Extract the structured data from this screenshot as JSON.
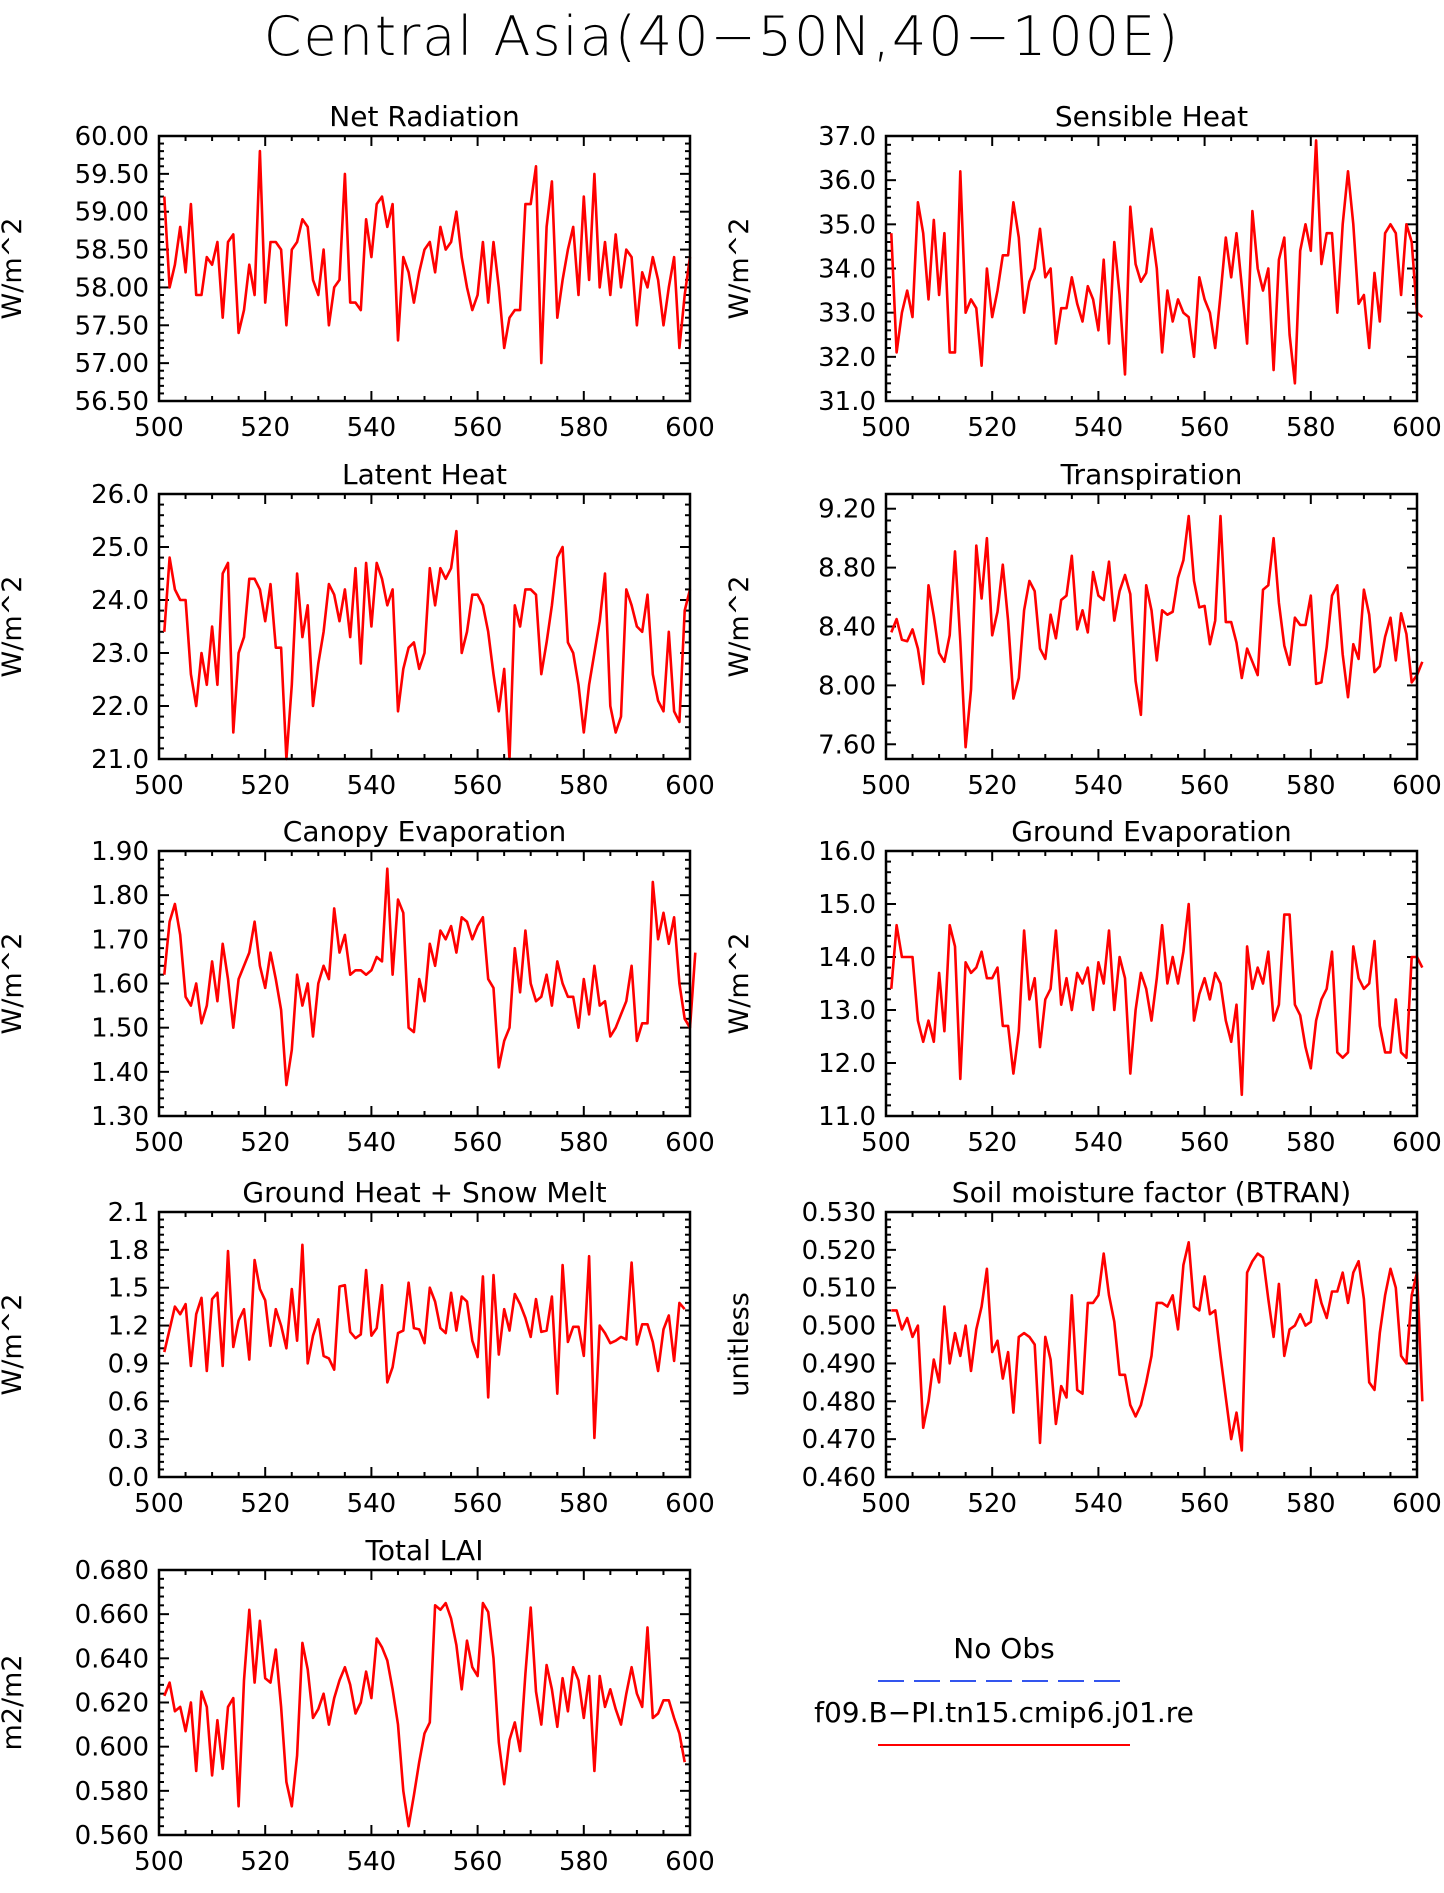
{
  "title": "Central Asia(40−50N,40−100E)",
  "colors": {
    "model": "#ff0000",
    "obs": "#3355ee",
    "axis": "#000000"
  },
  "legend": {
    "obs_label": "No Obs",
    "model_label": "f09.B−PI.tn15.cmip6.j01.re"
  },
  "chart_data": [
    {
      "type": "line",
      "title": "Net Radiation",
      "ylabel": "W/m^2",
      "xlim": [
        500,
        600
      ],
      "ylim": [
        56.5,
        60.0
      ],
      "xticks": [
        500,
        520,
        540,
        560,
        580,
        600
      ],
      "xtick_labels": [
        "500",
        "520",
        "540",
        "560",
        "580",
        "600"
      ],
      "yticks": [
        56.5,
        57.0,
        57.5,
        58.0,
        58.5,
        59.0,
        59.5,
        60.0
      ],
      "ytick_labels": [
        "56.50",
        "57.00",
        "57.50",
        "58.00",
        "58.50",
        "59.00",
        "59.50",
        "60.00"
      ],
      "x_start": 501,
      "x_step": 1,
      "values": [
        59.2,
        58.0,
        58.3,
        58.8,
        58.2,
        59.1,
        57.9,
        57.9,
        58.4,
        58.3,
        58.6,
        57.6,
        58.6,
        58.7,
        57.4,
        57.7,
        58.3,
        57.9,
        59.8,
        57.8,
        58.6,
        58.6,
        58.5,
        57.5,
        58.5,
        58.6,
        58.9,
        58.8,
        58.1,
        57.9,
        58.5,
        57.5,
        58.0,
        58.1,
        59.5,
        57.8,
        57.8,
        57.7,
        58.9,
        58.4,
        59.1,
        59.2,
        58.8,
        59.1,
        57.3,
        58.4,
        58.2,
        57.8,
        58.2,
        58.5,
        58.6,
        58.2,
        58.8,
        58.5,
        58.6,
        59.0,
        58.4,
        58.0,
        57.7,
        57.9,
        58.6,
        57.8,
        58.6,
        58.0,
        57.2,
        57.6,
        57.7,
        57.7,
        59.1,
        59.1,
        59.6,
        57.0,
        58.8,
        59.4,
        57.6,
        58.1,
        58.5,
        58.8,
        57.9,
        59.2,
        58.1,
        59.5,
        58.0,
        58.6,
        57.9,
        58.7,
        58.0,
        58.5,
        58.4,
        57.5,
        58.2,
        58.0,
        58.4,
        58.1,
        57.5,
        58.0,
        58.4,
        57.2,
        57.9,
        58.4
      ]
    },
    {
      "type": "line",
      "title": "Sensible Heat",
      "ylabel": "W/m^2",
      "xlim": [
        500,
        600
      ],
      "ylim": [
        31.0,
        37.0
      ],
      "xticks": [
        500,
        520,
        540,
        560,
        580,
        600
      ],
      "xtick_labels": [
        "500",
        "520",
        "540",
        "560",
        "580",
        "600"
      ],
      "yticks": [
        31.0,
        32.0,
        33.0,
        34.0,
        35.0,
        36.0,
        37.0
      ],
      "ytick_labels": [
        "31.0",
        "32.0",
        "33.0",
        "34.0",
        "35.0",
        "36.0",
        "37.0"
      ],
      "x_start": 501,
      "x_step": 1,
      "values": [
        34.8,
        32.1,
        33.0,
        33.5,
        32.9,
        35.5,
        34.8,
        33.3,
        35.1,
        33.4,
        34.8,
        32.1,
        32.1,
        36.2,
        33.0,
        33.3,
        33.1,
        31.8,
        34.0,
        32.9,
        33.5,
        34.3,
        34.3,
        35.5,
        34.7,
        33.0,
        33.7,
        34.0,
        34.9,
        33.8,
        34.0,
        32.3,
        33.1,
        33.1,
        33.8,
        33.2,
        32.8,
        33.6,
        33.3,
        32.6,
        34.2,
        32.3,
        34.6,
        33.4,
        31.6,
        35.4,
        34.1,
        33.7,
        33.9,
        34.9,
        34.0,
        32.1,
        33.5,
        32.8,
        33.3,
        33.0,
        32.9,
        32.0,
        33.8,
        33.3,
        33.0,
        32.2,
        33.4,
        34.7,
        33.8,
        34.8,
        33.6,
        32.3,
        35.3,
        34.0,
        33.5,
        34.0,
        31.7,
        34.2,
        34.7,
        32.5,
        31.4,
        34.4,
        35.0,
        34.4,
        36.9,
        34.1,
        34.8,
        34.8,
        33.0,
        35.0,
        36.2,
        35.0,
        33.2,
        33.4,
        32.2,
        33.9,
        32.8,
        34.8,
        35.0,
        34.8,
        33.4,
        35.0,
        34.6,
        33.0,
        32.9
      ]
    },
    {
      "type": "line",
      "title": "Latent Heat",
      "ylabel": "W/m^2",
      "xlim": [
        500,
        600
      ],
      "ylim": [
        21.0,
        26.0
      ],
      "xticks": [
        500,
        520,
        540,
        560,
        580,
        600
      ],
      "xtick_labels": [
        "500",
        "520",
        "540",
        "560",
        "580",
        "600"
      ],
      "yticks": [
        21.0,
        22.0,
        23.0,
        24.0,
        25.0,
        26.0
      ],
      "ytick_labels": [
        "21.0",
        "22.0",
        "23.0",
        "24.0",
        "25.0",
        "26.0"
      ],
      "x_start": 501,
      "x_step": 1,
      "values": [
        23.4,
        24.8,
        24.2,
        24.0,
        24.0,
        22.6,
        22.0,
        23.0,
        22.4,
        23.5,
        22.4,
        24.5,
        24.7,
        21.5,
        23.0,
        23.3,
        24.4,
        24.4,
        24.2,
        23.6,
        24.3,
        23.1,
        23.1,
        21.0,
        22.4,
        24.5,
        23.3,
        23.9,
        22.0,
        22.8,
        23.4,
        24.3,
        24.1,
        23.6,
        24.2,
        23.3,
        24.6,
        22.8,
        24.7,
        23.5,
        24.7,
        24.4,
        23.9,
        24.2,
        21.9,
        22.7,
        23.1,
        23.2,
        22.7,
        23.0,
        24.6,
        23.9,
        24.6,
        24.4,
        24.6,
        25.3,
        23.0,
        23.4,
        24.1,
        24.1,
        23.9,
        23.4,
        22.6,
        21.9,
        22.7,
        21.0,
        23.9,
        23.5,
        24.2,
        24.2,
        24.1,
        22.6,
        23.2,
        23.9,
        24.8,
        25.0,
        23.2,
        23.0,
        22.4,
        21.5,
        22.4,
        23.0,
        23.6,
        24.5,
        22.0,
        21.5,
        21.8,
        24.2,
        23.9,
        23.5,
        23.4,
        24.1,
        22.6,
        22.1,
        21.9,
        23.4,
        21.9,
        21.7,
        23.8,
        24.2
      ]
    },
    {
      "type": "line",
      "title": "Transpiration",
      "ylabel": "W/m^2",
      "xlim": [
        500,
        600
      ],
      "ylim": [
        7.5,
        9.3
      ],
      "xticks": [
        500,
        520,
        540,
        560,
        580,
        600
      ],
      "xtick_labels": [
        "500",
        "520",
        "540",
        "560",
        "580",
        "600"
      ],
      "yticks": [
        7.6,
        8.0,
        8.4,
        8.8,
        9.2
      ],
      "ytick_labels": [
        "7.60",
        "8.00",
        "8.40",
        "8.80",
        "9.20"
      ],
      "x_start": 501,
      "x_step": 1,
      "values": [
        8.36,
        8.45,
        8.31,
        8.3,
        8.38,
        8.25,
        8.01,
        8.68,
        8.47,
        8.22,
        8.16,
        8.34,
        8.91,
        8.3,
        7.58,
        7.97,
        8.95,
        8.59,
        9.0,
        8.34,
        8.5,
        8.82,
        8.44,
        7.91,
        8.05,
        8.51,
        8.71,
        8.64,
        8.25,
        8.18,
        8.48,
        8.32,
        8.58,
        8.61,
        8.88,
        8.38,
        8.51,
        8.36,
        8.77,
        8.61,
        8.58,
        8.84,
        8.44,
        8.64,
        8.75,
        8.62,
        8.03,
        7.8,
        8.68,
        8.51,
        8.17,
        8.51,
        8.48,
        8.5,
        8.73,
        8.85,
        9.15,
        8.71,
        8.53,
        8.54,
        8.28,
        8.44,
        9.15,
        8.43,
        8.43,
        8.29,
        8.05,
        8.25,
        8.16,
        8.07,
        8.65,
        8.68,
        9.0,
        8.56,
        8.27,
        8.14,
        8.46,
        8.41,
        8.41,
        8.61,
        8.01,
        8.02,
        8.26,
        8.61,
        8.68,
        8.21,
        7.92,
        8.28,
        8.18,
        8.65,
        8.48,
        8.09,
        8.13,
        8.33,
        8.46,
        8.17,
        8.49,
        8.35,
        8.02,
        8.07,
        8.16
      ]
    },
    {
      "type": "line",
      "title": "Canopy Evaporation",
      "ylabel": "W/m^2",
      "xlim": [
        500,
        600
      ],
      "ylim": [
        1.3,
        1.9
      ],
      "xticks": [
        500,
        520,
        540,
        560,
        580,
        600
      ],
      "xtick_labels": [
        "500",
        "520",
        "540",
        "560",
        "580",
        "600"
      ],
      "yticks": [
        1.3,
        1.4,
        1.5,
        1.6,
        1.7,
        1.8,
        1.9
      ],
      "ytick_labels": [
        "1.30",
        "1.40",
        "1.50",
        "1.60",
        "1.70",
        "1.80",
        "1.90"
      ],
      "x_start": 501,
      "x_step": 1,
      "values": [
        1.62,
        1.74,
        1.78,
        1.71,
        1.57,
        1.55,
        1.6,
        1.51,
        1.55,
        1.65,
        1.56,
        1.69,
        1.61,
        1.5,
        1.61,
        1.64,
        1.67,
        1.74,
        1.64,
        1.59,
        1.67,
        1.61,
        1.54,
        1.37,
        1.45,
        1.62,
        1.55,
        1.6,
        1.48,
        1.6,
        1.64,
        1.61,
        1.77,
        1.67,
        1.71,
        1.62,
        1.63,
        1.63,
        1.62,
        1.63,
        1.66,
        1.65,
        1.86,
        1.62,
        1.79,
        1.76,
        1.5,
        1.49,
        1.61,
        1.56,
        1.69,
        1.64,
        1.72,
        1.7,
        1.73,
        1.67,
        1.75,
        1.74,
        1.7,
        1.73,
        1.75,
        1.61,
        1.59,
        1.41,
        1.47,
        1.5,
        1.68,
        1.58,
        1.72,
        1.6,
        1.56,
        1.57,
        1.62,
        1.55,
        1.65,
        1.6,
        1.57,
        1.57,
        1.5,
        1.61,
        1.53,
        1.64,
        1.55,
        1.56,
        1.48,
        1.5,
        1.53,
        1.56,
        1.64,
        1.47,
        1.51,
        1.51,
        1.83,
        1.7,
        1.76,
        1.69,
        1.75,
        1.6,
        1.52,
        1.5,
        1.67
      ]
    },
    {
      "type": "line",
      "title": "Ground Evaporation",
      "ylabel": "W/m^2",
      "xlim": [
        500,
        600
      ],
      "ylim": [
        11.0,
        16.0
      ],
      "xticks": [
        500,
        520,
        540,
        560,
        580,
        600
      ],
      "xtick_labels": [
        "500",
        "520",
        "540",
        "560",
        "580",
        "600"
      ],
      "yticks": [
        11.0,
        12.0,
        13.0,
        14.0,
        15.0,
        16.0
      ],
      "ytick_labels": [
        "11.0",
        "12.0",
        "13.0",
        "14.0",
        "15.0",
        "16.0"
      ],
      "x_start": 501,
      "x_step": 1,
      "values": [
        13.4,
        14.6,
        14.0,
        14.0,
        14.0,
        12.8,
        12.4,
        12.8,
        12.4,
        13.7,
        12.6,
        14.6,
        14.2,
        11.7,
        13.9,
        13.7,
        13.8,
        14.1,
        13.6,
        13.6,
        13.8,
        12.7,
        12.7,
        11.8,
        12.6,
        14.5,
        13.2,
        13.6,
        12.3,
        13.2,
        13.4,
        14.5,
        13.1,
        13.6,
        13.0,
        13.7,
        13.5,
        13.8,
        13.0,
        13.9,
        13.5,
        14.5,
        13.0,
        14.0,
        13.6,
        11.8,
        13.0,
        13.7,
        13.4,
        12.8,
        13.6,
        14.6,
        13.5,
        14.0,
        13.5,
        14.1,
        15.0,
        12.8,
        13.3,
        13.6,
        13.2,
        13.7,
        13.5,
        12.8,
        12.4,
        13.1,
        11.4,
        14.2,
        13.4,
        13.8,
        13.5,
        14.1,
        12.8,
        13.1,
        14.8,
        14.8,
        13.1,
        12.9,
        12.3,
        11.9,
        12.8,
        13.2,
        13.4,
        14.1,
        12.2,
        12.1,
        12.2,
        14.2,
        13.6,
        13.4,
        13.5,
        14.3,
        12.7,
        12.2,
        12.2,
        13.2,
        12.2,
        12.1,
        14.0,
        14.0,
        13.8
      ]
    },
    {
      "type": "line",
      "title": "Ground Heat + Snow Melt",
      "ylabel": "W/m^2",
      "xlim": [
        500,
        600
      ],
      "ylim": [
        0.0,
        2.1
      ],
      "xticks": [
        500,
        520,
        540,
        560,
        580,
        600
      ],
      "xtick_labels": [
        "500",
        "520",
        "540",
        "560",
        "580",
        "600"
      ],
      "yticks": [
        0.0,
        0.3,
        0.6,
        0.9,
        1.2,
        1.5,
        1.8,
        2.1
      ],
      "ytick_labels": [
        "0.0",
        "0.3",
        "0.6",
        "0.9",
        "1.2",
        "1.5",
        "1.8",
        "2.1"
      ],
      "x_start": 501,
      "x_step": 1,
      "values": [
        0.99,
        1.17,
        1.35,
        1.29,
        1.37,
        0.88,
        1.29,
        1.42,
        0.84,
        1.41,
        1.46,
        0.88,
        1.79,
        1.03,
        1.24,
        1.33,
        0.93,
        1.72,
        1.49,
        1.4,
        1.04,
        1.33,
        1.2,
        1.02,
        1.49,
        1.08,
        1.84,
        0.9,
        1.12,
        1.25,
        0.96,
        0.94,
        0.85,
        1.51,
        1.52,
        1.15,
        1.1,
        1.13,
        1.64,
        1.12,
        1.18,
        1.52,
        0.75,
        0.87,
        1.14,
        1.16,
        1.54,
        1.18,
        1.17,
        1.06,
        1.5,
        1.39,
        1.18,
        1.14,
        1.46,
        1.16,
        1.43,
        1.39,
        1.08,
        0.95,
        1.59,
        0.63,
        1.6,
        0.97,
        1.33,
        1.16,
        1.45,
        1.37,
        1.26,
        1.11,
        1.41,
        1.15,
        1.16,
        1.43,
        0.66,
        1.68,
        1.07,
        1.19,
        1.19,
        0.96,
        1.75,
        0.31,
        1.2,
        1.14,
        1.06,
        1.08,
        1.11,
        1.09,
        1.7,
        1.05,
        1.21,
        1.21,
        1.07,
        0.84,
        1.17,
        1.28,
        0.92,
        1.38,
        1.33
      ]
    },
    {
      "type": "line",
      "title": "Soil moisture factor (BTRAN)",
      "ylabel": "unitless",
      "xlim": [
        500,
        600
      ],
      "ylim": [
        0.46,
        0.53
      ],
      "xticks": [
        500,
        520,
        540,
        560,
        580,
        600
      ],
      "xtick_labels": [
        "500",
        "520",
        "540",
        "560",
        "580",
        "600"
      ],
      "yticks": [
        0.46,
        0.47,
        0.48,
        0.49,
        0.5,
        0.51,
        0.52,
        0.53
      ],
      "ytick_labels": [
        "0.460",
        "0.470",
        "0.480",
        "0.490",
        "0.500",
        "0.510",
        "0.520",
        "0.530"
      ],
      "x_start": 501,
      "x_step": 1,
      "values": [
        0.504,
        0.504,
        0.499,
        0.502,
        0.497,
        0.5,
        0.473,
        0.48,
        0.491,
        0.485,
        0.505,
        0.49,
        0.498,
        0.492,
        0.5,
        0.488,
        0.499,
        0.505,
        0.515,
        0.493,
        0.496,
        0.486,
        0.493,
        0.477,
        0.497,
        0.498,
        0.497,
        0.495,
        0.469,
        0.497,
        0.491,
        0.474,
        0.484,
        0.481,
        0.508,
        0.483,
        0.482,
        0.506,
        0.506,
        0.508,
        0.519,
        0.508,
        0.501,
        0.487,
        0.487,
        0.479,
        0.476,
        0.479,
        0.485,
        0.492,
        0.506,
        0.506,
        0.505,
        0.508,
        0.499,
        0.516,
        0.522,
        0.505,
        0.504,
        0.513,
        0.503,
        0.504,
        0.492,
        0.481,
        0.47,
        0.477,
        0.467,
        0.514,
        0.517,
        0.519,
        0.518,
        0.507,
        0.497,
        0.511,
        0.492,
        0.499,
        0.5,
        0.503,
        0.5,
        0.501,
        0.512,
        0.506,
        0.502,
        0.509,
        0.509,
        0.514,
        0.506,
        0.514,
        0.517,
        0.507,
        0.485,
        0.483,
        0.498,
        0.508,
        0.515,
        0.51,
        0.492,
        0.49,
        0.508,
        0.514,
        0.48
      ]
    },
    {
      "type": "line",
      "title": "Total LAI",
      "ylabel": "m2/m2",
      "xlim": [
        500,
        600
      ],
      "ylim": [
        0.56,
        0.68
      ],
      "xticks": [
        500,
        520,
        540,
        560,
        580,
        600
      ],
      "xtick_labels": [
        "500",
        "520",
        "540",
        "560",
        "580",
        "600"
      ],
      "yticks": [
        0.56,
        0.58,
        0.6,
        0.62,
        0.64,
        0.66,
        0.68
      ],
      "ytick_labels": [
        "0.560",
        "0.580",
        "0.600",
        "0.620",
        "0.640",
        "0.660",
        "0.680"
      ],
      "x_start": 501,
      "x_step": 1,
      "values": [
        0.623,
        0.629,
        0.616,
        0.618,
        0.607,
        0.62,
        0.589,
        0.625,
        0.618,
        0.587,
        0.612,
        0.59,
        0.618,
        0.622,
        0.573,
        0.63,
        0.662,
        0.629,
        0.657,
        0.631,
        0.629,
        0.644,
        0.618,
        0.584,
        0.573,
        0.596,
        0.647,
        0.635,
        0.613,
        0.617,
        0.624,
        0.61,
        0.622,
        0.63,
        0.636,
        0.628,
        0.615,
        0.62,
        0.634,
        0.622,
        0.649,
        0.645,
        0.639,
        0.626,
        0.61,
        0.58,
        0.564,
        0.578,
        0.593,
        0.606,
        0.611,
        0.664,
        0.662,
        0.665,
        0.658,
        0.646,
        0.626,
        0.648,
        0.636,
        0.632,
        0.665,
        0.661,
        0.64,
        0.602,
        0.583,
        0.603,
        0.611,
        0.598,
        0.633,
        0.663,
        0.625,
        0.61,
        0.637,
        0.626,
        0.609,
        0.631,
        0.616,
        0.636,
        0.63,
        0.613,
        0.632,
        0.589,
        0.632,
        0.618,
        0.626,
        0.617,
        0.61,
        0.624,
        0.636,
        0.624,
        0.618,
        0.654,
        0.613,
        0.615,
        0.621,
        0.621,
        0.613,
        0.606,
        0.593
      ]
    }
  ]
}
